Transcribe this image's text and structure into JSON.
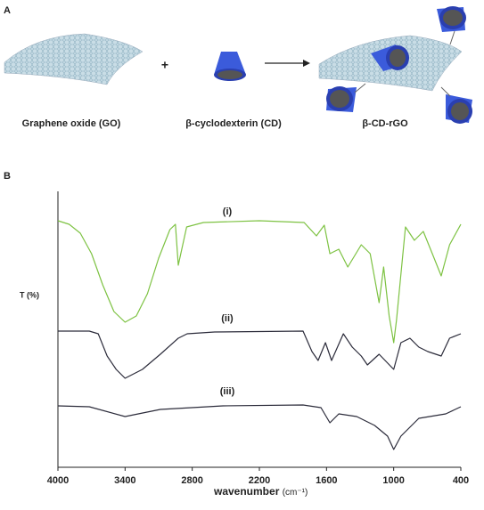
{
  "panel_a": {
    "label": "A",
    "plus": "+",
    "captions": [
      "Graphene oxide  (GO)",
      "β-cyclodexterin (CD)",
      "β-CD-rGO"
    ]
  },
  "chart_data": {
    "type": "line",
    "panel_label": "B",
    "ylabel": "T (%)",
    "xlabel": "wavenumber",
    "xlabel_unit": "(cm⁻¹)",
    "xlim": [
      4000,
      400
    ],
    "xticks": [
      4000,
      3400,
      2800,
      2200,
      1600,
      1000,
      400
    ],
    "ylim": [
      0,
      310
    ],
    "series": [
      {
        "name": "(i)",
        "color": "#7dc242",
        "x": [
          4000,
          3900,
          3800,
          3700,
          3600,
          3500,
          3400,
          3300,
          3200,
          3100,
          3000,
          2950,
          2925,
          2850,
          2700,
          2200,
          1800,
          1690,
          1620,
          1570,
          1490,
          1410,
          1290,
          1210,
          1130,
          1090,
          1040,
          1000,
          975,
          895,
          815,
          735,
          655,
          575,
          500,
          400
        ],
        "values": [
          277,
          273,
          263,
          240,
          205,
          175,
          163,
          170,
          195,
          235,
          267,
          273,
          227,
          270,
          275,
          277,
          275,
          260,
          272,
          240,
          245,
          225,
          250,
          240,
          185,
          225,
          170,
          140,
          165,
          270,
          255,
          265,
          240,
          215,
          250,
          273
        ]
      },
      {
        "name": "(ii)",
        "color": "#2b2b3a",
        "x": [
          4000,
          3720,
          3640,
          3560,
          3480,
          3400,
          3245,
          3085,
          2925,
          2845,
          2600,
          1810,
          1730,
          1675,
          1610,
          1555,
          1450,
          1370,
          1290,
          1235,
          1130,
          1000,
          935,
          855,
          775,
          695,
          575,
          500,
          400
        ],
        "values": [
          153,
          153,
          150,
          125,
          110,
          100,
          110,
          127,
          145,
          150,
          152,
          153,
          130,
          120,
          140,
          120,
          150,
          135,
          125,
          115,
          127,
          110,
          140,
          145,
          135,
          130,
          125,
          145,
          150
        ]
      },
      {
        "name": "(iii)",
        "color": "#2b2b3a",
        "x": [
          4000,
          3720,
          3400,
          3085,
          2525,
          1810,
          1650,
          1570,
          1490,
          1330,
          1170,
          1055,
          1000,
          935,
          775,
          535,
          400
        ],
        "values": [
          69,
          68,
          57,
          65,
          69,
          70,
          67,
          50,
          60,
          57,
          47,
          35,
          20,
          35,
          55,
          60,
          68
        ]
      }
    ]
  }
}
